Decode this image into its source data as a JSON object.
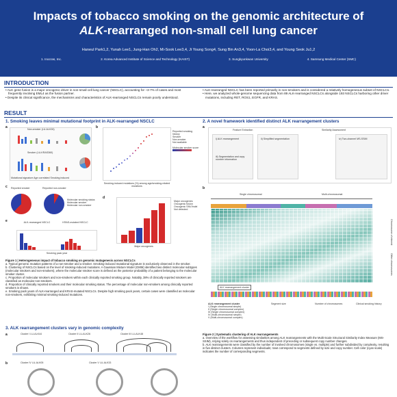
{
  "header": {
    "title_line1": "Impacts of tobacco smoking on the genomic architecture of",
    "title_italic": "ALK",
    "title_line2_rest": "-rearranged non-small cell lung cancer",
    "authors": "Haneul Park1,2, Yunah Lee1, Jung-Han Oh2, Mi-Sook Lee3,4, Ji Young Song4, Sung Bin An3,4, Yoon-La Choi3,4, and Young Seok Ju1,2",
    "affiliations": [
      "1. Inocras, Inc.",
      "2. Korea Advanced Institute of Science and Technology (KAIST)",
      "3. Sungkyunkwan University",
      "4. Samsung Medical Center (SMC)"
    ]
  },
  "introduction": {
    "heading": "INTRODUCTION",
    "left": [
      "ALK gene fusion is a major oncogenic driver in non-small cell lung cancer (NSCLC), accounting for ~3-7% of cases and most frequently involving EML4 as the fusion partner.",
      "Despite its clinical significance, the mechanisms and characteristics of ALK-rearranged NSCLCs remain poorly understood."
    ],
    "right": [
      "ALK-rearranged NSCLC has been reported primarily in non-smokers and is considered a relatively homogeneous subset of NSCLCs.",
      "Here, we analyzed whole-genome sequencing data from 89 ALK-rearranged NSCLCs alongside 193 NSCLCs harboring other driver mutations, including RET, ROS1, EGFR, and KRAS."
    ]
  },
  "result": {
    "heading": "RESULT",
    "sub1": "1. Smoking leaves minimal mutational footprint in ALK-rearranged NSCLC",
    "sub2": "2. A novel framework identified distinct ALK rearrangement clusters",
    "sub3": "3. ALK rearrangement clusters vary in genomic complexity"
  },
  "fig1": {
    "a_top": "Non-smoker (LU-ALK26)",
    "a_bottom": "Smoker (LU-KRAS360)",
    "a_footer": "Mutational signature   Age correlated   Smoking induced",
    "b_ylabel": "Number of smoking-induced mutations",
    "b_xlabel": "Smoking-induced mutations (%) among age/smoking-related mutations",
    "b_legend": [
      "Reported smoking history",
      "Smoker",
      "Non-smoker",
      "Not available"
    ],
    "b_scale": "Molecular smoker score",
    "c_left": "Reported smoker",
    "c_right": "Reported non-smoker",
    "c_legend": [
      "Molecular smoking status",
      "Molecular smoker",
      "Molecular non-smoker"
    ],
    "d_ylabel": "Proportion of reported non-smokers (%)",
    "d_xlabel": "Major oncogenes",
    "d_legend": [
      "Major oncogenes",
      "Oncogenic fusion",
      "Oncogenic SNV/Indel",
      "Not detected"
    ],
    "e_left": "ALK-rearranged NSCLC",
    "e_right": "KRAS-mutated NSCLC",
    "e_ylabel": "Number of patients",
    "e_xlabel": "Smoking pack year",
    "caption_title": "Figure 1 | Heterogeneous impact of tobacco smoking on genomic mutagenesis across NSCLCs",
    "caption": [
      "a. Typical genomic mutation patterns of a non-smoker and a smoker. Smoking-induced mutational signature is exclusively observed in the smoker.",
      "b. Clustering of NSCLCs based on the level of smoking-induced mutations. A Gaussian Mixture Model (GMM) identified two distinct molecular subtypes (molecular smokers and non-smokers), where the molecular smoker score is defined as the posterior probability of a patient belonging to the molecular smoker cluster.",
      "c. Proportion of molecular smokers and non-smokers within each clinically reported smoking group. Notably, 38% of clinically reported smokers are classified as molecular non-smokers.",
      "d. Proportion of clinically reported smokers and their molecular smoking status. The percentage of molecular non-smokers among clinically reported smokers is shown.",
      "e. Smoking pack years of ALK-rearranged and KRAS-mutated NSCLCs. Despite high smoking pack years, certain cases were classified as molecular non-smokers, exhibiting minimal smoking-induced mutations."
    ]
  },
  "fig2": {
    "a_left": "Feature Extraction",
    "a_right": "Similarity Assessment",
    "a_items": [
      "i) ALK rearrangement",
      "ii) Simplified segmentation",
      "iii) Segmentation and copy number information",
      "iv) Two-channel MS-SSIM"
    ],
    "b_top_left": "Single chromosomal",
    "b_top_right": "Multi-chromosomal",
    "b_side_top": "Chromosome of interest",
    "b_side_bottom": "Other chromosomes",
    "b_bottom": "ALK rearrangement cluster",
    "legend_head": [
      "ALK rearrangement cluster",
      "Segment size",
      "Number of chromosomes",
      "Clinical smoking history"
    ],
    "clusters": [
      "I (Single chromosomal simple)",
      "II (Single chromosomal complex)",
      "III (Single chromosomal complex)",
      "IV (Multi-chromosomal simple)",
      "V (Multi-chromosomal complex)"
    ],
    "caption_title": "Figure 2 | Systematic clustering of ALK rearrangements",
    "caption": [
      "a. Overview of the workflow for assessing similarities among ALK rearrangements with the Multi-Scale Structural Similarity Index Measure (MS-SSIM), relying solely on rearrangements and thus independent of preceding or subsequent copy number changes.",
      "b. ALK rearrangements were classified by the number of involved chromosomes (single vs. multiple) and further subdivided by complexity, resulting in five distinct clusters. Columns represent individuals; rows correspond to segments defined by size and copy number. Cell color (cyan scale) indicates the number of corresponding segments."
    ]
  },
  "fig3": {
    "labels": [
      "Cluster I LU-ALK44",
      "Cluster II LU-ALK26",
      "Cluster III LU-ALK48",
      "Cluster IV LU-ALK05",
      "Cluster V LU-ALK33"
    ]
  }
}
